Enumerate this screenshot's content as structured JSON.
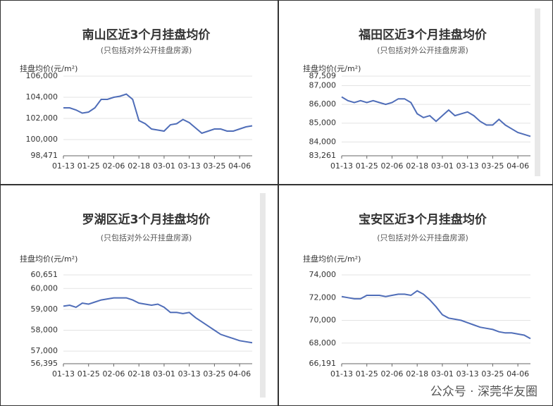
{
  "chart_data": [
    {
      "type": "line",
      "title": "南山区近3个月挂盘均价",
      "subtitle": "(只包括对外公开挂盘房源)",
      "y_label": "挂盘均价(元/m²)",
      "color": "#4f6db8",
      "grid": true,
      "categories": [
        "01-13",
        null,
        null,
        null,
        "01-25",
        null,
        null,
        null,
        "02-06",
        null,
        null,
        null,
        "02-18",
        null,
        null,
        null,
        "03-01",
        null,
        null,
        null,
        "03-13",
        null,
        null,
        null,
        "03-25",
        null,
        null,
        null,
        "04-06",
        null,
        null
      ],
      "values": [
        103000,
        103000,
        102800,
        102500,
        102600,
        103000,
        103800,
        103800,
        104000,
        104100,
        104300,
        103800,
        101800,
        101500,
        101000,
        100900,
        100800,
        101400,
        101500,
        101900,
        101600,
        101100,
        100600,
        100800,
        101000,
        101000,
        100800,
        100800,
        101000,
        101200,
        101300
      ],
      "ylim": [
        98471,
        106000
      ],
      "yticks": [
        {
          "value": 98471,
          "label": "98,471"
        },
        {
          "value": 100000,
          "label": "100,000"
        },
        {
          "value": 102000,
          "label": "102,000"
        },
        {
          "value": 104000,
          "label": "104,000"
        },
        {
          "value": 106000,
          "label": "106,000"
        }
      ]
    },
    {
      "type": "line",
      "title": "福田区近3个月挂盘均价",
      "subtitle": "(只包括对外公开挂盘房源)",
      "y_label": "挂盘均价(元/m²)",
      "color": "#4f6db8",
      "grid": true,
      "categories": [
        "01-13",
        null,
        null,
        null,
        "01-25",
        null,
        null,
        null,
        "02-06",
        null,
        null,
        null,
        "02-18",
        null,
        null,
        null,
        "03-01",
        null,
        null,
        null,
        "03-13",
        null,
        null,
        null,
        "03-25",
        null,
        null,
        null,
        "04-06",
        null,
        null
      ],
      "values": [
        86400,
        86200,
        86100,
        86200,
        86100,
        86200,
        86100,
        86000,
        86100,
        86300,
        86300,
        86100,
        85500,
        85300,
        85400,
        85100,
        85400,
        85700,
        85400,
        85500,
        85600,
        85400,
        85100,
        84900,
        84900,
        85200,
        84900,
        84700,
        84500,
        84400,
        84300
      ],
      "ylim": [
        83261,
        87509
      ],
      "yticks": [
        {
          "value": 83261,
          "label": "83,261"
        },
        {
          "value": 84000,
          "label": "84,000"
        },
        {
          "value": 85000,
          "label": "85,000"
        },
        {
          "value": 86000,
          "label": "86,000"
        },
        {
          "value": 87000,
          "label": "87,000"
        },
        {
          "value": 87509,
          "label": "87,509"
        }
      ]
    },
    {
      "type": "line",
      "title": "罗湖区近3个月挂盘均价",
      "subtitle": "(只包括对外公开挂盘房源)",
      "y_label": "挂盘均价(元/m²)",
      "color": "#4f6db8",
      "grid": true,
      "categories": [
        "01-13",
        null,
        null,
        null,
        "01-25",
        null,
        null,
        null,
        "02-06",
        null,
        null,
        null,
        "02-18",
        null,
        null,
        null,
        "03-01",
        null,
        null,
        null,
        "03-13",
        null,
        null,
        null,
        "03-25",
        null,
        null,
        null,
        "04-06",
        null,
        null
      ],
      "values": [
        59150,
        59200,
        59100,
        59300,
        59250,
        59350,
        59450,
        59500,
        59550,
        59550,
        59550,
        59450,
        59300,
        59250,
        59200,
        59250,
        59100,
        58850,
        58850,
        58800,
        58850,
        58600,
        58400,
        58200,
        58000,
        57800,
        57700,
        57600,
        57500,
        57450,
        57400
      ],
      "ylim": [
        56395,
        60651
      ],
      "yticks": [
        {
          "value": 56395,
          "label": "56,395"
        },
        {
          "value": 57000,
          "label": "57,000"
        },
        {
          "value": 58000,
          "label": "58,000"
        },
        {
          "value": 59000,
          "label": "59,000"
        },
        {
          "value": 60000,
          "label": "60,000"
        },
        {
          "value": 60651,
          "label": "60,651"
        }
      ]
    },
    {
      "type": "line",
      "title": "宝安区近3个月挂盘均价",
      "subtitle": "(只包括对外公开挂盘房源)",
      "y_label": "挂盘均价(元/m²)",
      "color": "#4f6db8",
      "grid": true,
      "categories": [
        "01-13",
        null,
        null,
        null,
        "01-25",
        null,
        null,
        null,
        "02-06",
        null,
        null,
        null,
        "02-18",
        null,
        null,
        null,
        "03-01",
        null,
        null,
        null,
        "03-13",
        null,
        null,
        null,
        "03-25",
        null,
        null,
        null,
        "04-06",
        null,
        null
      ],
      "values": [
        72100,
        72000,
        71900,
        71900,
        72200,
        72200,
        72200,
        72100,
        72200,
        72300,
        72300,
        72200,
        72600,
        72300,
        71800,
        71200,
        70500,
        70200,
        70100,
        70000,
        69800,
        69600,
        69400,
        69300,
        69200,
        69000,
        68900,
        68900,
        68800,
        68700,
        68400
      ],
      "ylim": [
        66191,
        74000
      ],
      "yticks": [
        {
          "value": 66191,
          "label": "66,191"
        },
        {
          "value": 68000,
          "label": "68,000"
        },
        {
          "value": 70000,
          "label": "70,000"
        },
        {
          "value": 72000,
          "label": "72,000"
        },
        {
          "value": 74000,
          "label": "74,000"
        }
      ]
    }
  ],
  "watermark": "公众号 · 深莞华友圈"
}
